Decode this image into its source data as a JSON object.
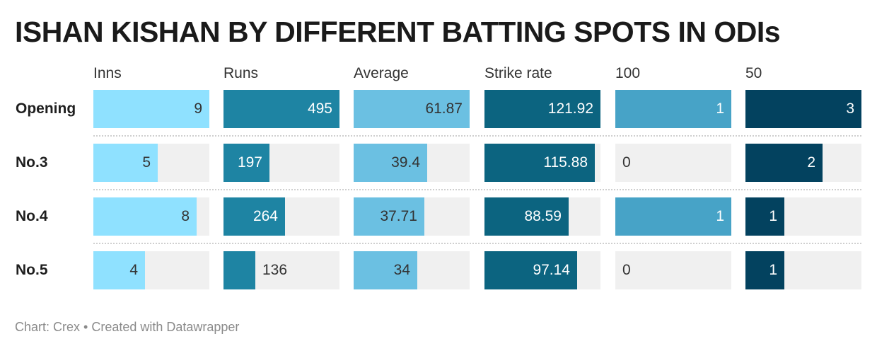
{
  "title": "ISHAN KISHAN BY DIFFERENT BATTING SPOTS IN ODIs",
  "footer": "Chart: Crex • Created with Datawrapper",
  "chart_data": {
    "type": "table",
    "title": "ISHAN KISHAN BY DIFFERENT BATTING SPOTS IN ODIs",
    "columns": [
      {
        "key": "inns",
        "label": "Inns",
        "color": "#8fe1ff",
        "text_color": "#333333",
        "max": 9
      },
      {
        "key": "runs",
        "label": "Runs",
        "color": "#1e84a3",
        "text_color": "#ffffff",
        "max": 495
      },
      {
        "key": "average",
        "label": "Average",
        "color": "#6bc0e2",
        "text_color": "#333333",
        "max": 61.87
      },
      {
        "key": "strike_rate",
        "label": "Strike rate",
        "color": "#0c6480",
        "text_color": "#ffffff",
        "max": 121.92
      },
      {
        "key": "hundreds",
        "label": "100",
        "color": "#47a3c7",
        "text_color": "#ffffff",
        "max": 1
      },
      {
        "key": "fifties",
        "label": "50",
        "color": "#03425f",
        "text_color": "#ffffff",
        "max": 3
      }
    ],
    "rows": [
      {
        "label": "Opening",
        "values": [
          "9",
          "495",
          "61.87",
          "121.92",
          "1",
          "3"
        ]
      },
      {
        "label": "No.3",
        "values": [
          "5",
          "197",
          "39.4",
          "115.88",
          "0",
          "2"
        ]
      },
      {
        "label": "No.4",
        "values": [
          "8",
          "264",
          "37.71",
          "88.59",
          "1",
          "1"
        ]
      },
      {
        "label": "No.5",
        "values": [
          "4",
          "136",
          "34",
          "97.14",
          "0",
          "1"
        ]
      }
    ]
  }
}
